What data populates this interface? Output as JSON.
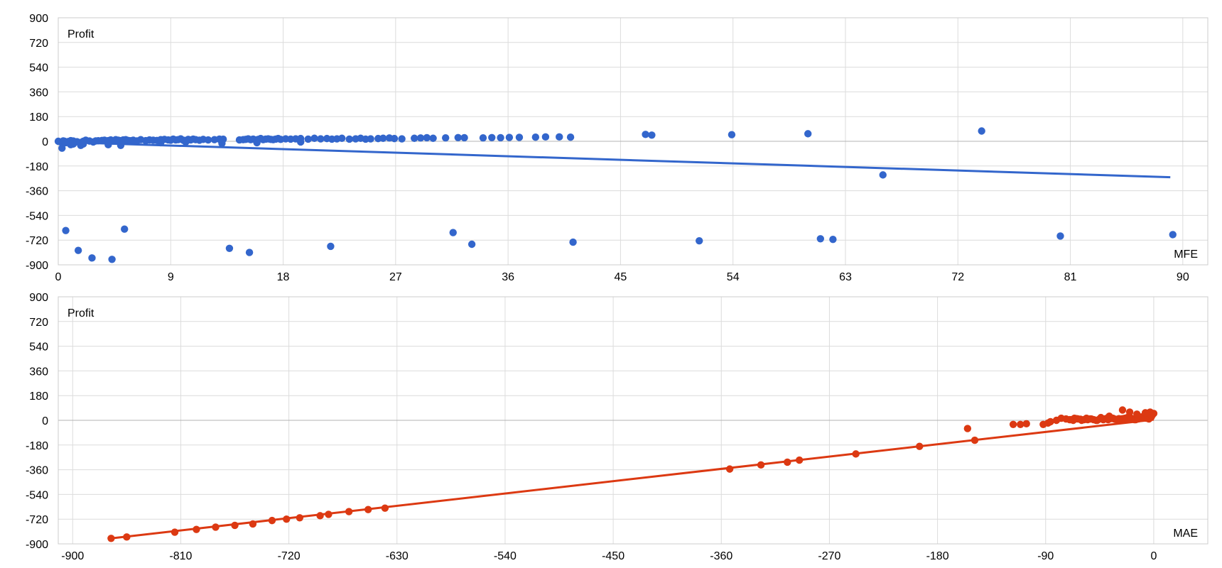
{
  "chart_data": [
    {
      "type": "scatter",
      "ylabel": "Profit",
      "xlabel": "MFE",
      "xlim": [
        0,
        92
      ],
      "ylim": [
        -900,
        900
      ],
      "x_ticks": [
        0,
        9,
        18,
        27,
        36,
        45,
        54,
        63,
        72,
        81,
        90
      ],
      "y_ticks": [
        900,
        720,
        540,
        360,
        180,
        0,
        -180,
        -360,
        -540,
        -720,
        -900
      ],
      "grid": true,
      "trendline": {
        "x": [
          0,
          89
        ],
        "y": [
          -5,
          -262
        ]
      },
      "color": "#3366cc",
      "series": [
        {
          "x": [
            0,
            0.2,
            0.4,
            0.5,
            0.6,
            0.8,
            1.0,
            1.2,
            1.5,
            1.8,
            2.0,
            2.2,
            2.5,
            2.8,
            3.0,
            3.2,
            3.5,
            3.7,
            4.0,
            4.2,
            4.4,
            4.6,
            4.8,
            5.0,
            5.2,
            5.4,
            5.6,
            5.8,
            6.0,
            6.3,
            6.6,
            7.0,
            7.3,
            7.6,
            7.9,
            8.2,
            8.5,
            8.8,
            9.0,
            9.2,
            9.4,
            9.6,
            9.8,
            10.0,
            10.2,
            10.4,
            10.6,
            10.8,
            11.0,
            11.3,
            11.6,
            12.0,
            12.5,
            12.9,
            13.2,
            14.5,
            14.8,
            15.0,
            15.2,
            15.4,
            15.6,
            15.8,
            16.0,
            16.2,
            16.4,
            16.6,
            16.8,
            17.0,
            17.2,
            17.4,
            17.6,
            17.8,
            18.2,
            18.6,
            19.0,
            19.4,
            20.0,
            20.5,
            21.0,
            21.5,
            21.9,
            22.3,
            22.7,
            23.3,
            23.8,
            24.2,
            24.6,
            25.0,
            25.6,
            26.0,
            26.5,
            26.9,
            27.5,
            28.5,
            29.0,
            29.5,
            30.0,
            31.0,
            32.0,
            32.5,
            34.0,
            34.7,
            35.4,
            36.1,
            36.9,
            38.2,
            39.0,
            40.1,
            41.0,
            47.0,
            47.5,
            53.9,
            60.0,
            73.9,
            1.2,
            1.8,
            1.0,
            0.3,
            2.0,
            4.0,
            5.0,
            8.2,
            10.2,
            13.1,
            15.9,
            19.4,
            66.0,
            0.6,
            5.3,
            31.6,
            62.0,
            80.2,
            89.2,
            1.6,
            2.7,
            4.3,
            15.3,
            13.7,
            21.8,
            33.1,
            41.2,
            51.3,
            61.0
          ],
          "y": [
            0,
            -5,
            3,
            0,
            -10,
            -2,
            5,
            2,
            -3,
            -8,
            0,
            8,
            2,
            -5,
            3,
            4,
            6,
            8,
            5,
            10,
            2,
            12,
            8,
            5,
            10,
            12,
            6,
            4,
            8,
            3,
            12,
            5,
            10,
            8,
            6,
            12,
            14,
            10,
            8,
            16,
            10,
            12,
            18,
            8,
            6,
            14,
            10,
            16,
            12,
            8,
            14,
            10,
            12,
            16,
            15,
            10,
            12,
            14,
            18,
            12,
            16,
            10,
            14,
            20,
            12,
            16,
            18,
            14,
            12,
            16,
            20,
            14,
            18,
            16,
            18,
            20,
            16,
            22,
            18,
            20,
            16,
            18,
            22,
            16,
            18,
            22,
            16,
            18,
            20,
            22,
            24,
            20,
            18,
            22,
            24,
            26,
            22,
            25,
            27,
            26,
            25,
            27,
            26,
            28,
            29,
            30,
            32,
            32,
            30,
            50,
            45,
            48,
            55,
            75,
            -20,
            -30,
            -25,
            -50,
            -20,
            -25,
            -30,
            -10,
            -5,
            -15,
            -10,
            -5,
            -245,
            -650,
            -640,
            -665,
            -715,
            -690,
            -680,
            -795,
            -850,
            -860,
            -810,
            -780,
            -765,
            -750,
            -735,
            -725,
            -710
          ]
        }
      ]
    },
    {
      "type": "scatter",
      "ylabel": "Profit",
      "xlabel": "MAE",
      "xlim": [
        -912,
        45
      ],
      "ylim": [
        -900,
        900
      ],
      "x_ticks": [
        -900,
        -810,
        -720,
        -630,
        -540,
        -450,
        -360,
        -270,
        -180,
        -90,
        0
      ],
      "y_ticks": [
        900,
        720,
        540,
        360,
        180,
        0,
        -180,
        -360,
        -540,
        -720,
        -900
      ],
      "grid": true,
      "trendline": {
        "x": [
          -868,
          0
        ],
        "y": [
          -860,
          5
        ]
      },
      "color": "#dc3912",
      "series": [
        {
          "x": [
            -868,
            -855,
            -815,
            -797,
            -781,
            -765,
            -750,
            -734,
            -722,
            -711,
            -694,
            -687,
            -670,
            -654,
            -640,
            -353,
            -327,
            -305,
            -295,
            -248,
            -195,
            -155,
            -149,
            -117,
            -111,
            -106,
            -92,
            -88,
            -86,
            -81,
            -77,
            -73,
            -69,
            -67,
            -64,
            -61,
            -58,
            -56,
            -53,
            -50,
            -47,
            -44,
            -41,
            -38,
            -36,
            -34,
            -32,
            -30,
            -28,
            -26,
            -24,
            -22,
            -20,
            -18,
            -16,
            -14,
            -12,
            -10,
            -8,
            -6,
            -4,
            -2,
            -1,
            0,
            -3,
            -5,
            -7,
            -9,
            -11,
            -13,
            -15,
            -17,
            -19,
            -21,
            -23,
            -25,
            -27,
            -29,
            -31,
            -33,
            -37,
            -39,
            -42,
            -45,
            -48,
            -52,
            -55,
            -60,
            -63,
            -66,
            -70,
            -26,
            -20,
            -14,
            -7,
            -2
          ],
          "y": [
            -860,
            -850,
            -815,
            -795,
            -778,
            -765,
            -755,
            -730,
            -720,
            -710,
            -695,
            -685,
            -665,
            -650,
            -640,
            -355,
            -325,
            -305,
            -290,
            -245,
            -190,
            -60,
            -145,
            -30,
            -30,
            -25,
            -30,
            -20,
            -10,
            0,
            15,
            10,
            5,
            0,
            12,
            8,
            5,
            15,
            10,
            5,
            0,
            20,
            10,
            5,
            12,
            15,
            8,
            5,
            10,
            12,
            15,
            20,
            25,
            10,
            5,
            15,
            20,
            25,
            30,
            15,
            10,
            25,
            40,
            50,
            60,
            45,
            30,
            20,
            15,
            10,
            5,
            10,
            15,
            20,
            10,
            5,
            8,
            12,
            6,
            10,
            30,
            15,
            5,
            10,
            0,
            10,
            5,
            0,
            10,
            15,
            5,
            75,
            60,
            45,
            55,
            35
          ]
        }
      ]
    }
  ]
}
